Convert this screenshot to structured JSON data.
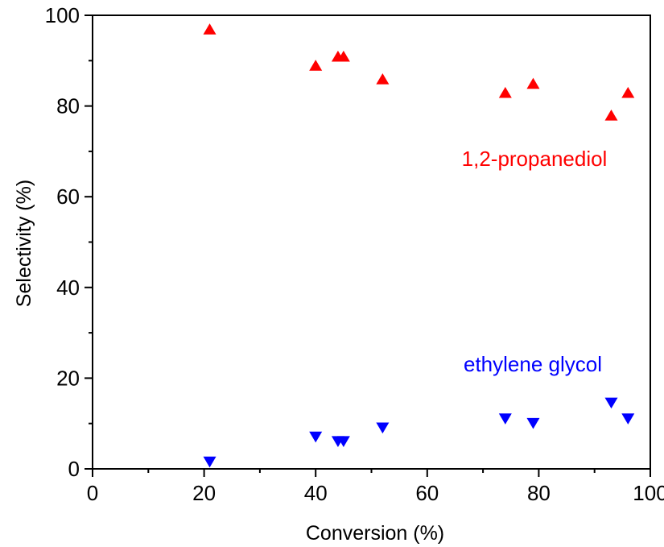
{
  "chart_data": {
    "type": "scatter",
    "title": "",
    "xlabel": "Conversion (%)",
    "ylabel": "Selectivity (%)",
    "xlim": [
      0,
      100
    ],
    "ylim": [
      0,
      100
    ],
    "x_ticks": [
      0,
      20,
      40,
      60,
      80,
      100
    ],
    "y_ticks": [
      0,
      20,
      40,
      60,
      80,
      100
    ],
    "x_tick_labels": [
      "0",
      "20",
      "40",
      "60",
      "80",
      "100"
    ],
    "y_tick_labels": [
      "0",
      "20",
      "40",
      "60",
      "80",
      "100"
    ],
    "grid": false,
    "legend": "none",
    "series": [
      {
        "name": "1,2-propanediol",
        "marker": "triangle-up",
        "color": "#ff0000",
        "x": [
          21,
          40,
          44,
          45,
          52,
          74,
          79,
          93,
          96
        ],
        "y": [
          97,
          89,
          91,
          91,
          86,
          83,
          85,
          78,
          83
        ]
      },
      {
        "name": "ethylene glycol",
        "marker": "triangle-down",
        "color": "#0000ff",
        "x": [
          21,
          40,
          44,
          45,
          52,
          74,
          79,
          93,
          96
        ],
        "y": [
          1.5,
          7,
          6,
          6,
          9,
          11,
          10,
          14.5,
          11
        ]
      }
    ],
    "annotations": [
      {
        "text": "1,2-propanediol",
        "color": "#ff0000"
      },
      {
        "text": "ethylene glycol",
        "color": "#0000ff"
      }
    ]
  }
}
